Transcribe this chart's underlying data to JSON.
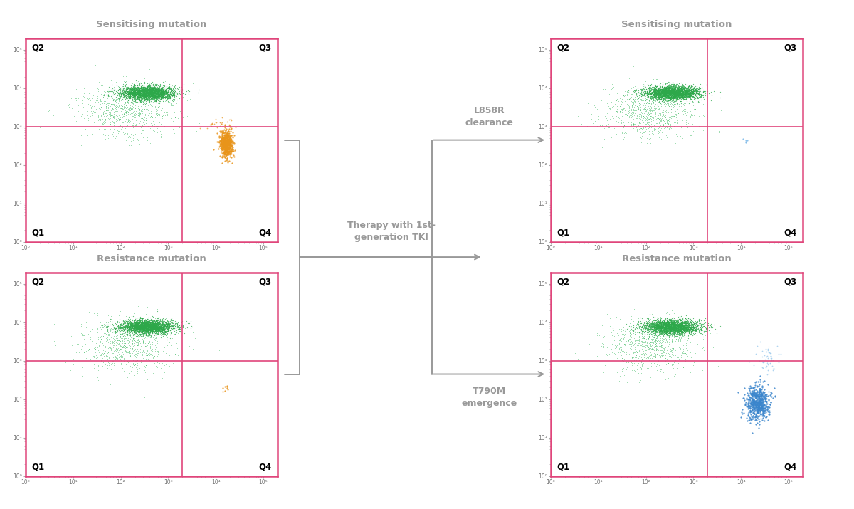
{
  "title_color": "#999999",
  "border_color": "#e0457b",
  "quadrant_line_color": "#e0457b",
  "arrow_color": "#999999",
  "background_color": "#ffffff",
  "plots": [
    {
      "title": "Sensitising mutation",
      "green_cluster": {
        "x_log_mean": 2.55,
        "x_log_std": 0.28,
        "y_log_mean": 3.88,
        "y_log_std": 0.09,
        "n": 3500,
        "color": "#2da84a"
      },
      "green_tail": {
        "x_log_mean": 2.1,
        "x_log_std": 0.5,
        "y_log_mean": 3.4,
        "y_log_std": 0.35,
        "n": 1200,
        "color": "#4abf6a"
      },
      "signal_cluster": {
        "x_log_mean": 4.22,
        "x_log_std": 0.07,
        "y_log_mean": 2.55,
        "y_log_std": 0.18,
        "n": 600,
        "color": "#e8941a"
      },
      "signal_top": {
        "x_log_mean": 4.05,
        "x_log_std": 0.2,
        "y_log_mean": 3.08,
        "y_log_std": 0.08,
        "n": 30,
        "color": "#e8941a"
      },
      "quadrant_x_log": 3.3,
      "quadrant_y_log": 3.0
    },
    {
      "title": "Resistance mutation",
      "green_cluster": {
        "x_log_mean": 2.55,
        "x_log_std": 0.28,
        "y_log_mean": 3.88,
        "y_log_std": 0.09,
        "n": 3500,
        "color": "#2da84a"
      },
      "green_tail": {
        "x_log_mean": 2.1,
        "x_log_std": 0.5,
        "y_log_mean": 3.4,
        "y_log_std": 0.35,
        "n": 1200,
        "color": "#4abf6a"
      },
      "signal_cluster": {
        "x_log_mean": 4.22,
        "x_log_std": 0.04,
        "y_log_mean": 2.28,
        "y_log_std": 0.07,
        "n": 8,
        "color": "#e8941a"
      },
      "quadrant_x_log": 3.3,
      "quadrant_y_log": 3.0
    },
    {
      "title": "Sensitising mutation",
      "green_cluster": {
        "x_log_mean": 2.55,
        "x_log_std": 0.28,
        "y_log_mean": 3.88,
        "y_log_std": 0.09,
        "n": 3500,
        "color": "#2da84a"
      },
      "green_tail": {
        "x_log_mean": 2.1,
        "x_log_std": 0.5,
        "y_log_mean": 3.4,
        "y_log_std": 0.35,
        "n": 1200,
        "color": "#4abf6a"
      },
      "signal_cluster": {
        "x_log_mean": 4.1,
        "x_log_std": 0.03,
        "y_log_mean": 2.65,
        "y_log_std": 0.05,
        "n": 5,
        "color": "#7ab8e8"
      },
      "quadrant_x_log": 3.3,
      "quadrant_y_log": 3.0
    },
    {
      "title": "Resistance mutation",
      "green_cluster": {
        "x_log_mean": 2.55,
        "x_log_std": 0.28,
        "y_log_mean": 3.88,
        "y_log_std": 0.09,
        "n": 3500,
        "color": "#2da84a"
      },
      "green_tail": {
        "x_log_mean": 2.1,
        "x_log_std": 0.5,
        "y_log_mean": 3.4,
        "y_log_std": 0.35,
        "n": 1200,
        "color": "#4abf6a"
      },
      "signal_cluster": {
        "x_log_mean": 4.35,
        "x_log_std": 0.12,
        "y_log_mean": 1.88,
        "y_log_std": 0.22,
        "n": 650,
        "color": "#3a85cc"
      },
      "signal_right": {
        "x_log_mean": 4.55,
        "x_log_std": 0.12,
        "y_log_mean": 3.08,
        "y_log_std": 0.2,
        "n": 55,
        "color": "#7ab8e8"
      },
      "quadrant_x_log": 3.3,
      "quadrant_y_log": 3.0
    }
  ],
  "xlim_log": [
    0,
    5.3
  ],
  "ylim_log": [
    0,
    5.3
  ],
  "middle_text": "Therapy with 1st-\ngeneration TKI",
  "top_right_text": "L858R\nclearance",
  "bottom_right_text": "T790M\nemergence"
}
